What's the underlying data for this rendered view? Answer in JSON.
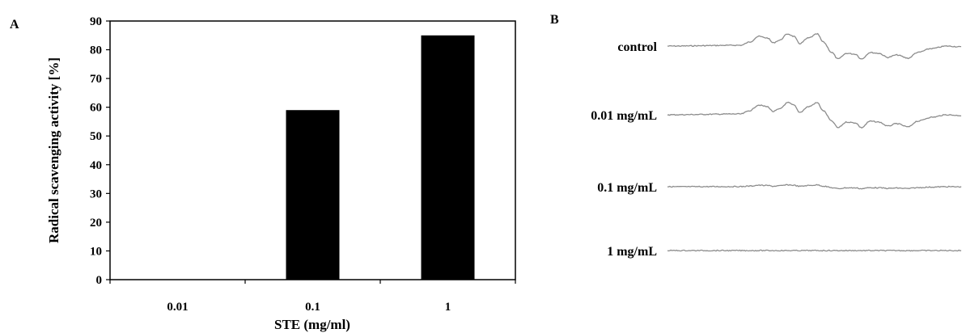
{
  "panel_a": {
    "letter": "A"
  },
  "panel_b": {
    "letter": "B"
  },
  "chart_data": {
    "type": "bar",
    "title": "",
    "xlabel": "STE (mg/ml)",
    "ylabel": "Radical scavenging activity [%]",
    "categories": [
      "0.01",
      "0.1",
      "1"
    ],
    "values": [
      0,
      59,
      85
    ],
    "ylim": [
      0,
      90
    ],
    "yticks": [
      "0",
      "10",
      "20",
      "30",
      "40",
      "50",
      "60",
      "70",
      "80",
      "90"
    ],
    "grid": false,
    "bar_color": "#000000"
  },
  "esr_spectra": {
    "line_color": "#8c8c8c",
    "traces": [
      {
        "label": "control",
        "amplitude": 1.0
      },
      {
        "label": "0.01 mg/mL",
        "amplitude": 1.0
      },
      {
        "label": "0.1 mg/mL",
        "amplitude": 0.15
      },
      {
        "label": "1 mg/mL",
        "amplitude": 0.0
      }
    ]
  }
}
